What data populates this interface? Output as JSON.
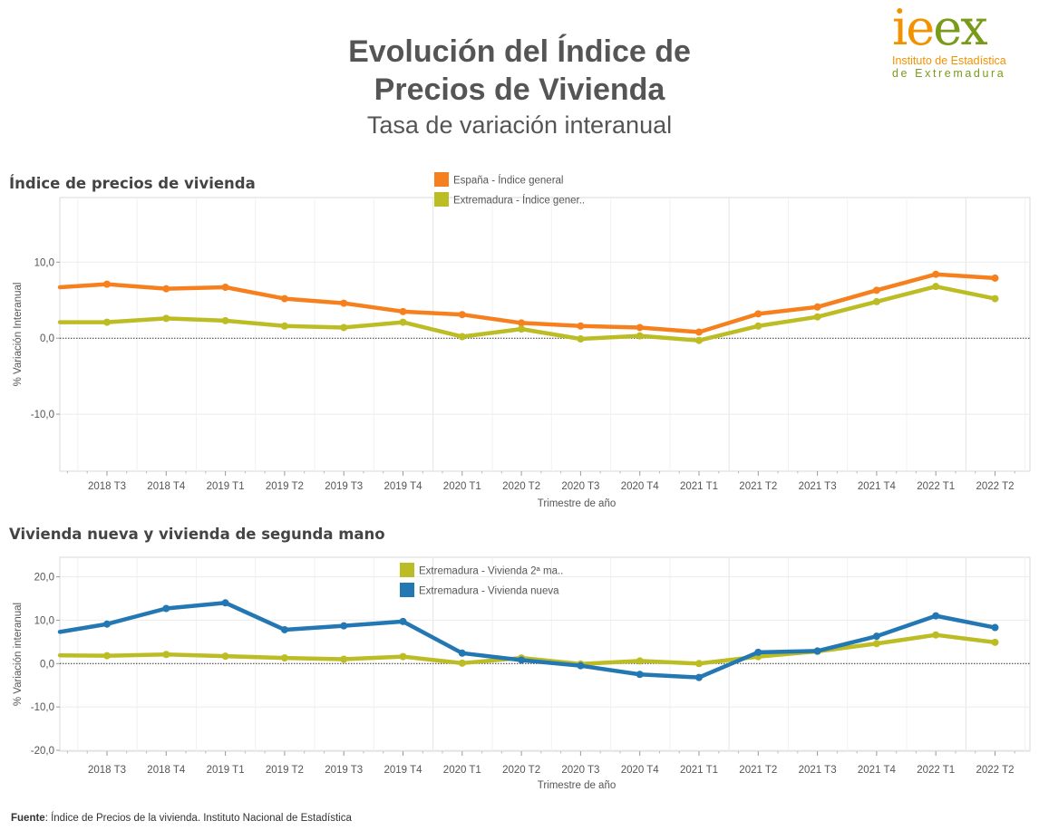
{
  "header": {
    "title_line1": "Evolución del Índice de",
    "title_line2": "Precios de Vivienda",
    "subtitle": "Tasa de variación interanual"
  },
  "logo": {
    "mark_ie": "ie",
    "mark_ex": "ex",
    "line1": "Instituto de Estadística",
    "line2": "de Extremadura"
  },
  "footer": {
    "source_label": "Fuente",
    "source_text": ": Índice de Precios de la vivienda. Instituto Nacional de Estadística"
  },
  "chart_data": [
    {
      "type": "line",
      "title": "Índice de precios de vivienda",
      "xlabel": "Trimestre de año",
      "ylabel": "% Variación Interanual",
      "categories": [
        "2018 T3",
        "2018 T4",
        "2019 T1",
        "2019 T2",
        "2019 T3",
        "2019 T4",
        "2020 T1",
        "2020 T2",
        "2020 T3",
        "2020 T4",
        "2021 T1",
        "2021 T2",
        "2021 T3",
        "2021 T4",
        "2022 T1",
        "2022 T2"
      ],
      "yticks": [
        10,
        0,
        -10
      ],
      "ytick_labels": [
        "10,0",
        "0,0",
        "-10,0"
      ],
      "ylim": [
        -17.5,
        18.5
      ],
      "legend_position": "top-center",
      "grid": true,
      "series": [
        {
          "name": "España - Índice general",
          "color": "#f7801e",
          "start_value": 6.7,
          "values": [
            7.1,
            6.5,
            6.7,
            5.2,
            4.6,
            3.5,
            3.1,
            2.0,
            1.6,
            1.4,
            0.8,
            3.2,
            4.1,
            6.3,
            8.4,
            7.9
          ]
        },
        {
          "name": "Extremadura - Índice gener..",
          "color": "#bcbc24",
          "start_value": 2.1,
          "values": [
            2.1,
            2.6,
            2.3,
            1.6,
            1.4,
            2.1,
            0.2,
            1.2,
            -0.1,
            0.3,
            -0.3,
            1.6,
            2.8,
            4.8,
            6.8,
            5.2
          ]
        }
      ]
    },
    {
      "type": "line",
      "title": "Vivienda nueva y vivienda de segunda mano",
      "xlabel": "Trimestre de año",
      "ylabel": "% Variación interanual",
      "categories": [
        "2018 T3",
        "2018 T4",
        "2019 T1",
        "2019 T2",
        "2019 T3",
        "2019 T4",
        "2020 T1",
        "2020 T2",
        "2020 T3",
        "2020 T4",
        "2021 T1",
        "2021 T2",
        "2021 T3",
        "2021 T4",
        "2022 T1",
        "2022 T2"
      ],
      "yticks": [
        20,
        10,
        0,
        -10,
        -20
      ],
      "ytick_labels": [
        "20,0",
        "10,0",
        "0,0",
        "-10,0",
        "-20,0"
      ],
      "ylim": [
        -20.2,
        24.5
      ],
      "legend_position": "top-center",
      "grid": true,
      "series": [
        {
          "name": "Extremadura - Vivienda 2ª ma..",
          "color": "#bcbc24",
          "start_value": 1.9,
          "values": [
            1.8,
            2.1,
            1.7,
            1.3,
            1.0,
            1.6,
            0.1,
            1.3,
            -0.1,
            0.6,
            0.0,
            1.6,
            2.8,
            4.6,
            6.6,
            4.9
          ]
        },
        {
          "name": "Extremadura - Vivienda nueva",
          "color": "#2377b3",
          "start_value": 7.3,
          "values": [
            9.1,
            12.7,
            14.0,
            7.8,
            8.7,
            9.7,
            2.4,
            0.8,
            -0.5,
            -2.5,
            -3.2,
            2.6,
            2.9,
            6.3,
            11.0,
            8.3
          ]
        }
      ]
    }
  ]
}
